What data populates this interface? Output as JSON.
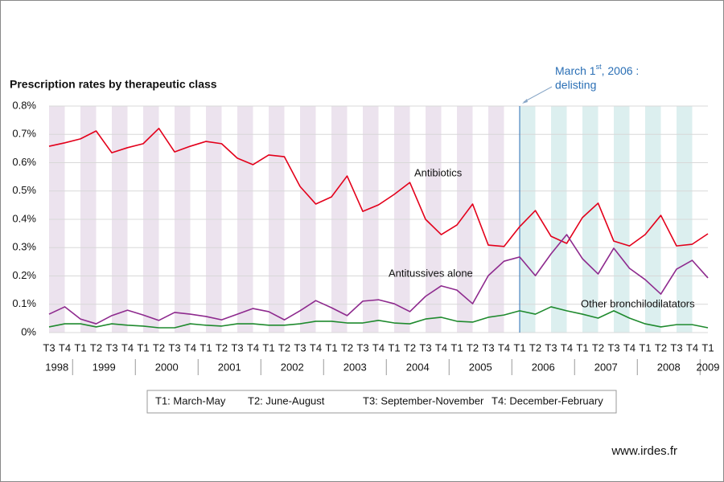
{
  "chart_data": {
    "type": "line",
    "title": "Prescription rates by therapeutic class",
    "annotation": {
      "text": "March 1",
      "superscript": "st",
      "text_after": ", 2006 :",
      "line2": "delisting"
    },
    "categories": [
      "T3",
      "T4",
      "T1",
      "T2",
      "T3",
      "T4",
      "T1",
      "T2",
      "T3",
      "T4",
      "T1",
      "T2",
      "T3",
      "T4",
      "T1",
      "T2",
      "T3",
      "T4",
      "T1",
      "T2",
      "T3",
      "T4",
      "T1",
      "T2",
      "T3",
      "T4",
      "T1",
      "T2",
      "T3",
      "T4",
      "T1",
      "T2",
      "T3",
      "T4",
      "T1",
      "T2",
      "T3",
      "T4",
      "T1",
      "T2",
      "T3",
      "T4",
      "T1"
    ],
    "years": [
      {
        "label": "1998",
        "quarters": 2
      },
      {
        "label": "1999",
        "quarters": 4
      },
      {
        "label": "2000",
        "quarters": 4
      },
      {
        "label": "2001",
        "quarters": 4
      },
      {
        "label": "2002",
        "quarters": 4
      },
      {
        "label": "2003",
        "quarters": 4
      },
      {
        "label": "2004",
        "quarters": 4
      },
      {
        "label": "2005",
        "quarters": 4
      },
      {
        "label": "2006",
        "quarters": 4
      },
      {
        "label": "2007",
        "quarters": 4
      },
      {
        "label": "2008",
        "quarters": 4
      },
      {
        "label": "2009",
        "quarters": 1
      }
    ],
    "series": [
      {
        "name": "Antibiotics",
        "color": "#e3001b",
        "values": [
          0.658,
          0.67,
          0.684,
          0.712,
          0.635,
          0.653,
          0.667,
          0.721,
          0.638,
          0.658,
          0.675,
          0.667,
          0.616,
          0.593,
          0.627,
          0.621,
          0.516,
          0.454,
          0.479,
          0.553,
          0.428,
          0.451,
          0.488,
          0.53,
          0.4,
          0.346,
          0.38,
          0.454,
          0.309,
          0.304,
          0.374,
          0.431,
          0.34,
          0.315,
          0.406,
          0.457,
          0.323,
          0.306,
          0.346,
          0.414,
          0.306,
          0.312,
          0.349
        ]
      },
      {
        "name": "Antitussives alone",
        "color": "#8e2a8e",
        "values": [
          0.065,
          0.091,
          0.048,
          0.031,
          0.06,
          0.079,
          0.062,
          0.043,
          0.071,
          0.065,
          0.057,
          0.045,
          0.065,
          0.085,
          0.074,
          0.045,
          0.077,
          0.113,
          0.088,
          0.06,
          0.111,
          0.116,
          0.102,
          0.074,
          0.128,
          0.165,
          0.15,
          0.102,
          0.201,
          0.252,
          0.267,
          0.201,
          0.278,
          0.346,
          0.261,
          0.207,
          0.298,
          0.227,
          0.187,
          0.136,
          0.224,
          0.255,
          0.193
        ]
      },
      {
        "name": "Other bronchilodilatators",
        "color": "#1f8a2e",
        "values": [
          0.02,
          0.031,
          0.031,
          0.02,
          0.031,
          0.026,
          0.023,
          0.017,
          0.017,
          0.031,
          0.026,
          0.023,
          0.031,
          0.031,
          0.026,
          0.026,
          0.031,
          0.04,
          0.04,
          0.034,
          0.034,
          0.043,
          0.034,
          0.031,
          0.048,
          0.054,
          0.04,
          0.037,
          0.054,
          0.062,
          0.077,
          0.065,
          0.091,
          0.077,
          0.065,
          0.051,
          0.077,
          0.051,
          0.031,
          0.02,
          0.028,
          0.028,
          0.017
        ]
      }
    ],
    "ylim": [
      0,
      0.8
    ],
    "yticks": [
      {
        "value": 0,
        "label": "0%"
      },
      {
        "value": 0.1,
        "label": "0.1%"
      },
      {
        "value": 0.2,
        "label": "0.2%"
      },
      {
        "value": 0.3,
        "label": "0.3%"
      },
      {
        "value": 0.4,
        "label": "0.4%"
      },
      {
        "value": 0.5,
        "label": "0.5%"
      },
      {
        "value": 0.6,
        "label": "0.6%"
      },
      {
        "value": 0.7,
        "label": "0.7%"
      },
      {
        "value": 0.8,
        "label": "0.8%"
      }
    ],
    "grid": true,
    "legend_notes": [
      "T1: March-May",
      "T2: June-August",
      "T3: September-November",
      "T4: December-February"
    ],
    "source": "www.irdes.fr"
  }
}
